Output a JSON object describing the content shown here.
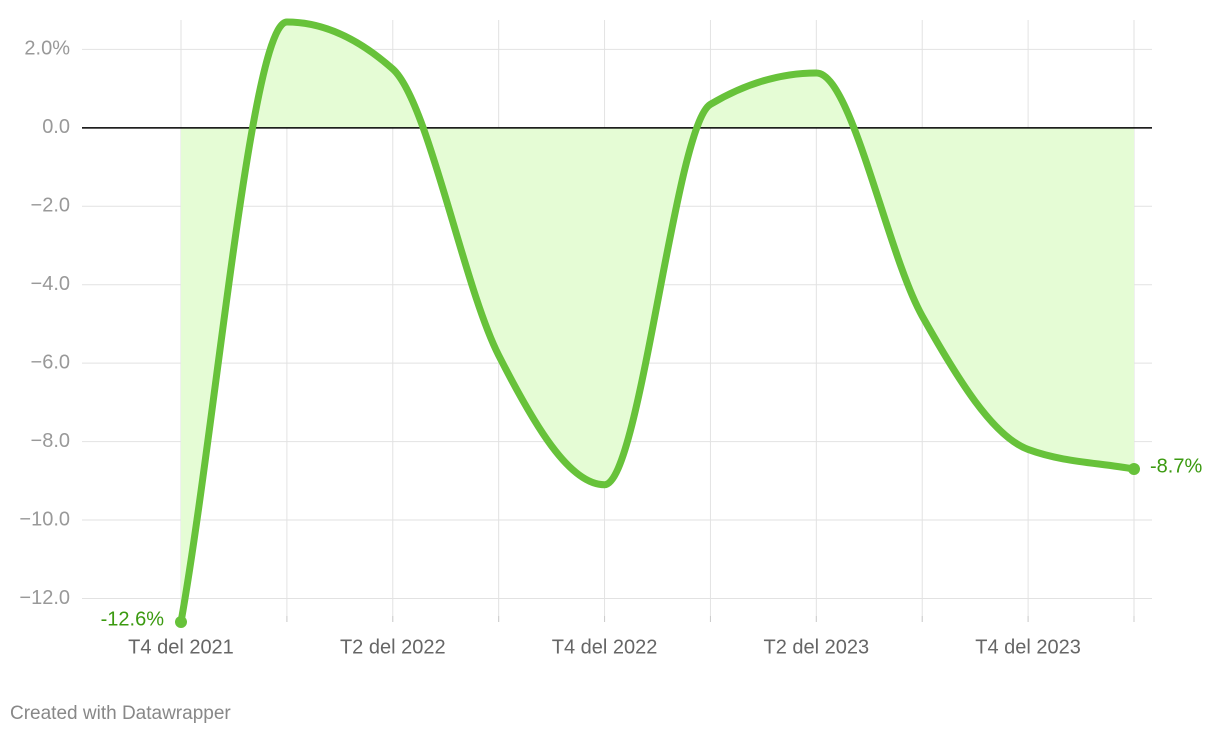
{
  "chart_data": {
    "type": "area-line",
    "categories": [
      "T4 del 2021",
      null,
      "T2 del 2022",
      null,
      "T4 del 2022",
      null,
      "T2 del 2023",
      null,
      "T4 del 2023",
      null
    ],
    "values": [
      -12.6,
      2.7,
      1.5,
      -5.8,
      -9.1,
      0.6,
      1.4,
      -4.8,
      -8.2,
      -8.7
    ],
    "value_labels": [
      "-12.6%",
      null,
      null,
      null,
      null,
      null,
      null,
      null,
      null,
      "-8.7%"
    ],
    "color": "#67c23a",
    "fill": "#e5fcd5",
    "label_color": "#3b9a10",
    "ylim": [
      -12.6,
      2.75
    ],
    "yticks": [
      {
        "value": 2,
        "label": "2.0%"
      },
      {
        "value": 0,
        "label": "0.0"
      },
      {
        "value": -2,
        "label": "−2.0"
      },
      {
        "value": -4,
        "label": "−4.0"
      },
      {
        "value": -6,
        "label": "−6.0"
      },
      {
        "value": -8,
        "label": "−8.0"
      },
      {
        "value": -10,
        "label": "−10.0"
      },
      {
        "value": -12,
        "label": "−12.0"
      }
    ],
    "grid": true,
    "footer": "Created with Datawrapper"
  }
}
